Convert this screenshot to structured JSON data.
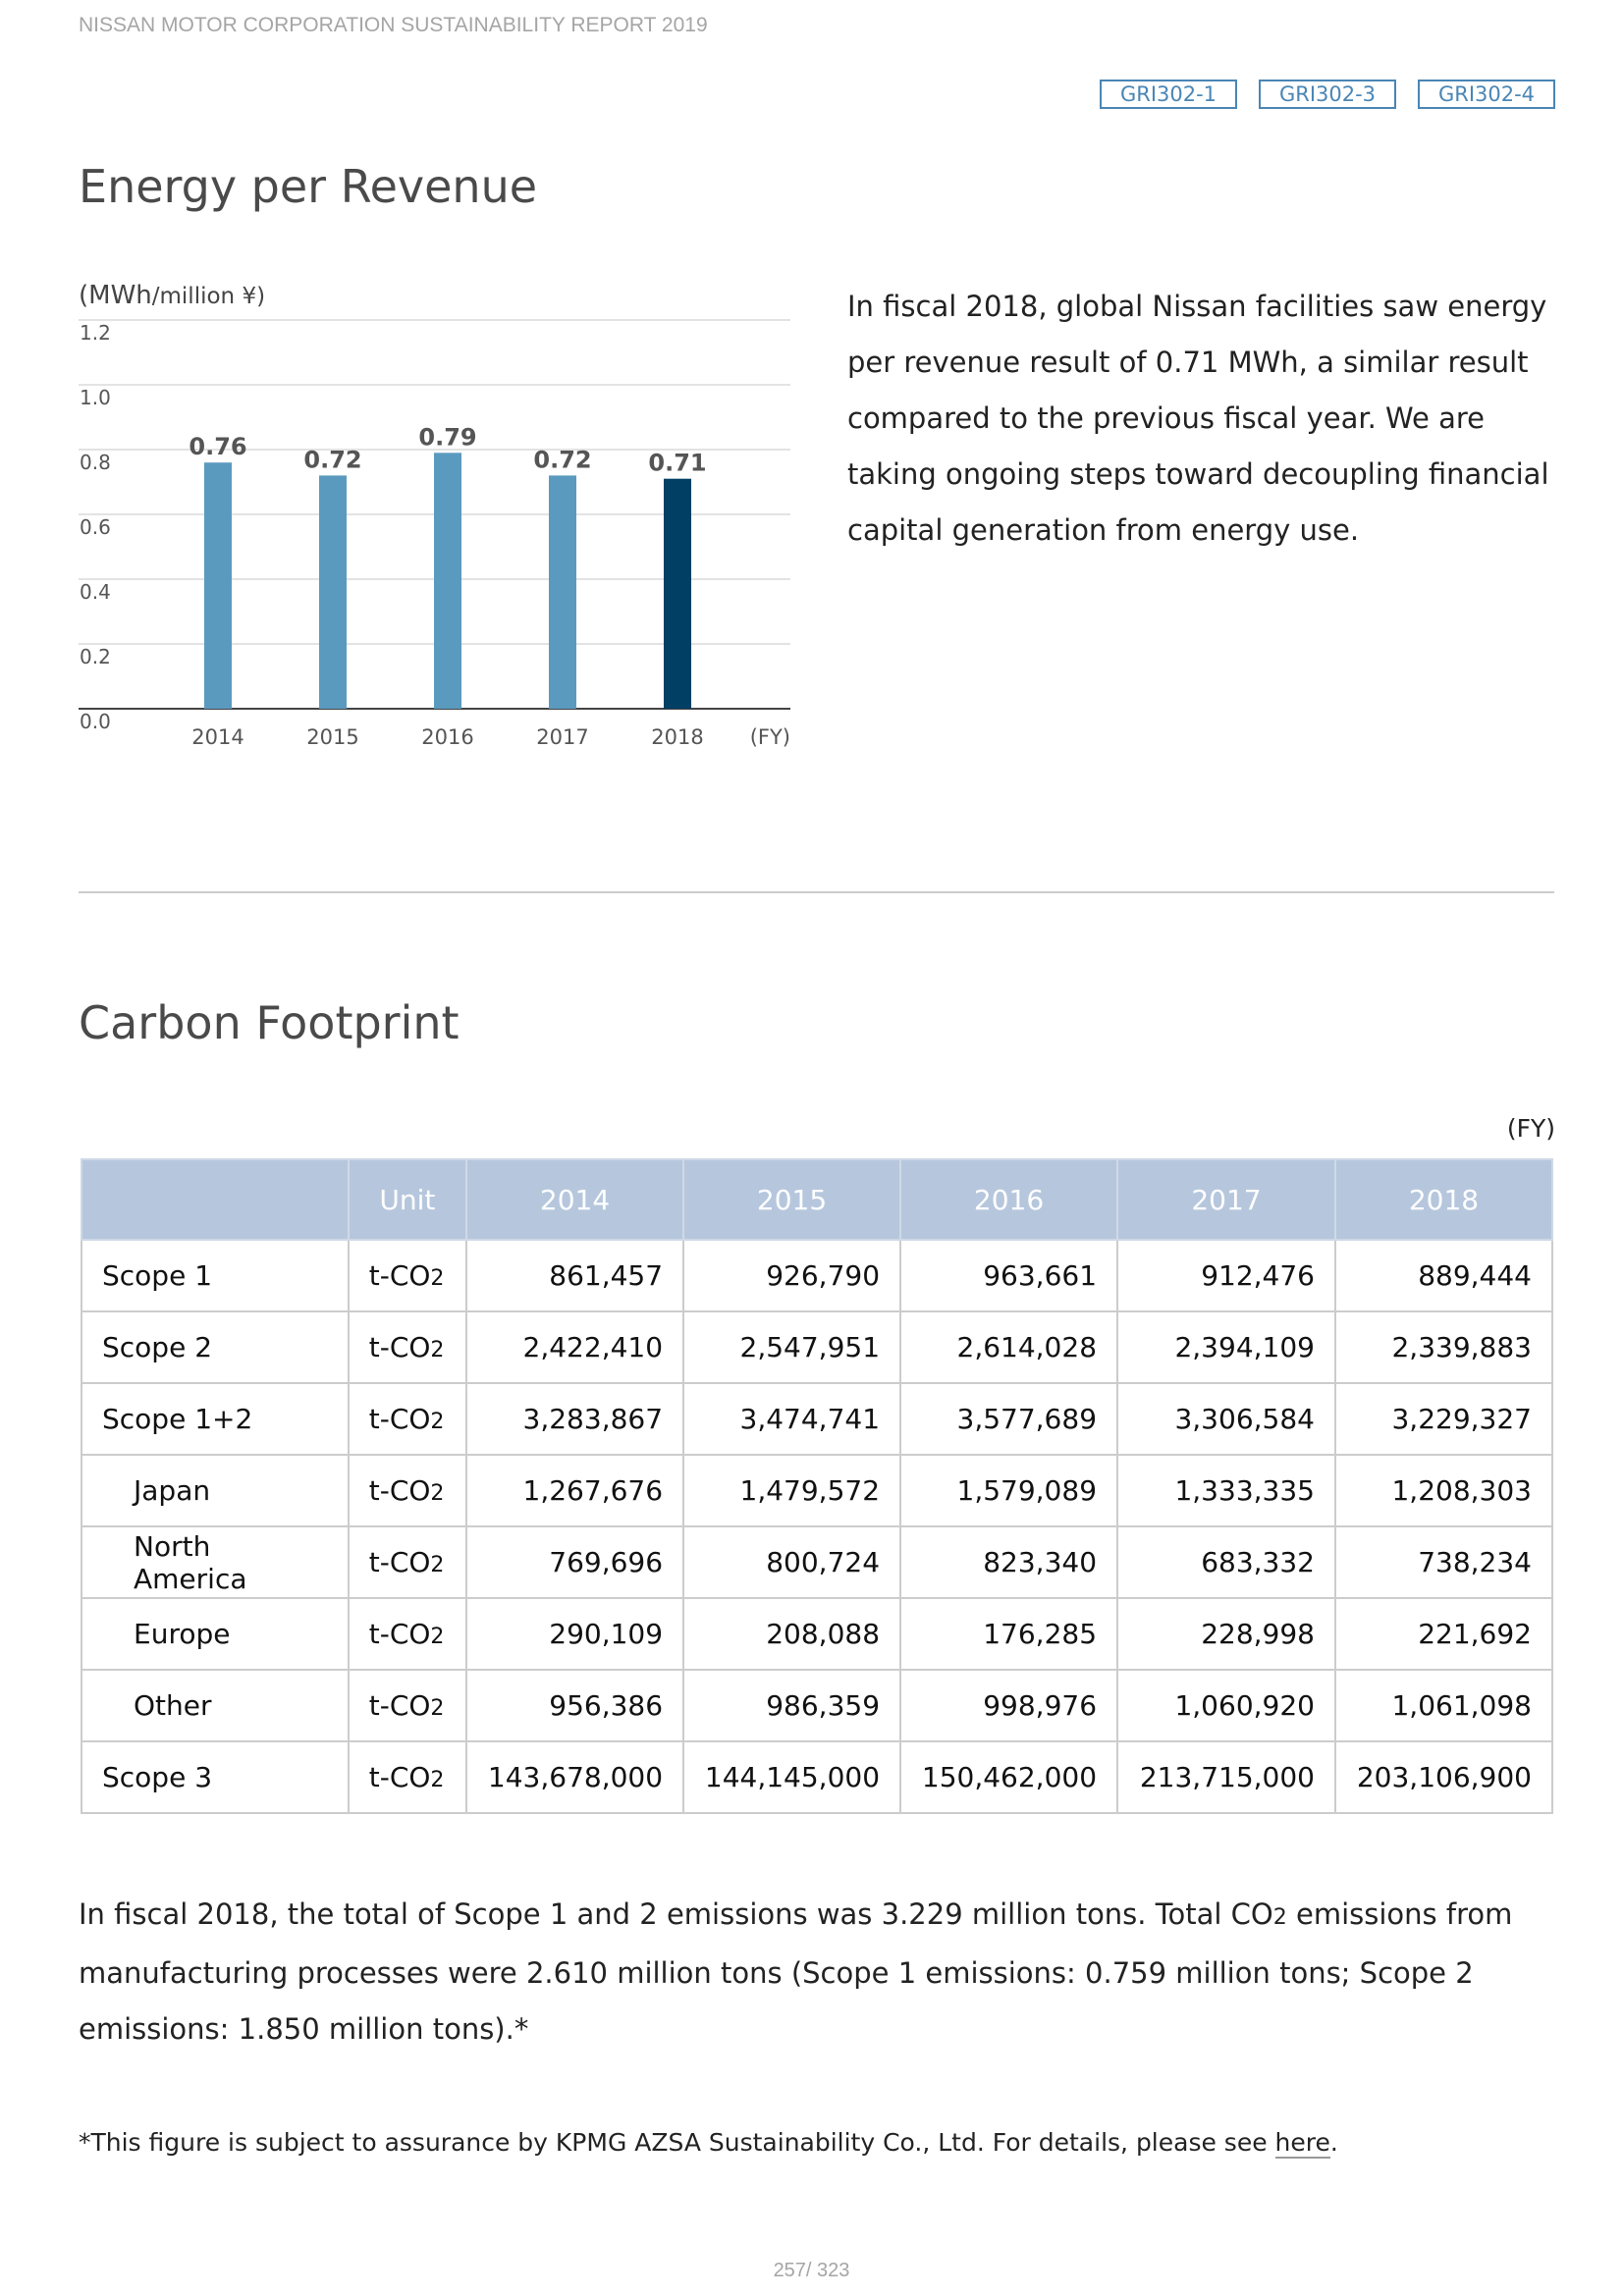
{
  "header": {
    "report_title": "NISSAN MOTOR CORPORATION SUSTAINABILITY REPORT 2019"
  },
  "gri_tags": [
    "GRI302-1",
    "GRI302-3",
    "GRI302-4"
  ],
  "energy_section": {
    "title": "Energy per Revenue",
    "description": "In fiscal 2018, global Nissan facilities saw energy per revenue result of 0.71 MWh, a similar result compared to the previous fiscal year. We are taking ongoing steps toward decoupling financial capital generation from energy use."
  },
  "chart_data": {
    "type": "bar",
    "unit_main": "(MWh",
    "unit_small": "/million ¥)",
    "categories": [
      "2014",
      "2015",
      "2016",
      "2017",
      "2018"
    ],
    "values": [
      0.76,
      0.72,
      0.79,
      0.72,
      0.71
    ],
    "value_labels": [
      "0.76",
      "0.72",
      "0.79",
      "0.72",
      "0.71"
    ],
    "yticks": [
      "0.0",
      "0.2",
      "0.4",
      "0.6",
      "0.8",
      "1.0",
      "1.2"
    ],
    "ylim": [
      0,
      1.2
    ],
    "x_unit": "(FY)",
    "grid": true,
    "colors": {
      "bar": "#5b9abf",
      "highlight": "#013f64",
      "label": "#555555"
    }
  },
  "carbon_section": {
    "title": "Carbon Footprint",
    "fy_label": "(FY)",
    "table": {
      "headers": [
        "",
        "Unit",
        "2014",
        "2015",
        "2016",
        "2017",
        "2018"
      ],
      "unit_base": "t-CO",
      "unit_sub": "2",
      "rows": [
        {
          "label": "Scope 1",
          "values": [
            "861,457",
            "926,790",
            "963,661",
            "912,476",
            "889,444"
          ]
        },
        {
          "label": "Scope 2",
          "values": [
            "2,422,410",
            "2,547,951",
            "2,614,028",
            "2,394,109",
            "2,339,883"
          ]
        },
        {
          "label": "Scope 1+2",
          "values": [
            "3,283,867",
            "3,474,741",
            "3,577,689",
            "3,306,584",
            "3,229,327"
          ]
        },
        {
          "label": "Japan",
          "values": [
            "1,267,676",
            "1,479,572",
            "1,579,089",
            "1,333,335",
            "1,208,303"
          ]
        },
        {
          "label": "North America",
          "values": [
            "769,696",
            "800,724",
            "823,340",
            "683,332",
            "738,234"
          ]
        },
        {
          "label": "Europe",
          "values": [
            "290,109",
            "208,088",
            "176,285",
            "228,998",
            "221,692"
          ]
        },
        {
          "label": "Other",
          "values": [
            "956,386",
            "986,359",
            "998,976",
            "1,060,920",
            "1,061,098"
          ]
        },
        {
          "label": "Scope 3",
          "values": [
            "143,678,000",
            "144,145,000",
            "150,462,000",
            "213,715,000",
            "203,106,900"
          ]
        }
      ]
    },
    "paragraph": {
      "part1": "In fiscal 2018, the total of Scope 1 and 2 emissions was 3.229 million tons. Total CO",
      "sub": "2",
      "part2": " emissions from manufacturing processes were 2.610 million tons (Scope 1 emissions: 0.759 million tons; Scope 2 emissions: 1.850 million tons).*"
    },
    "footnote": {
      "text": "*This figure is subject to assurance by KPMG AZSA Sustainability Co., Ltd. For details, please see ",
      "link_text": "here",
      "suffix": "."
    }
  },
  "footer": {
    "page_number": "257/ 323"
  }
}
